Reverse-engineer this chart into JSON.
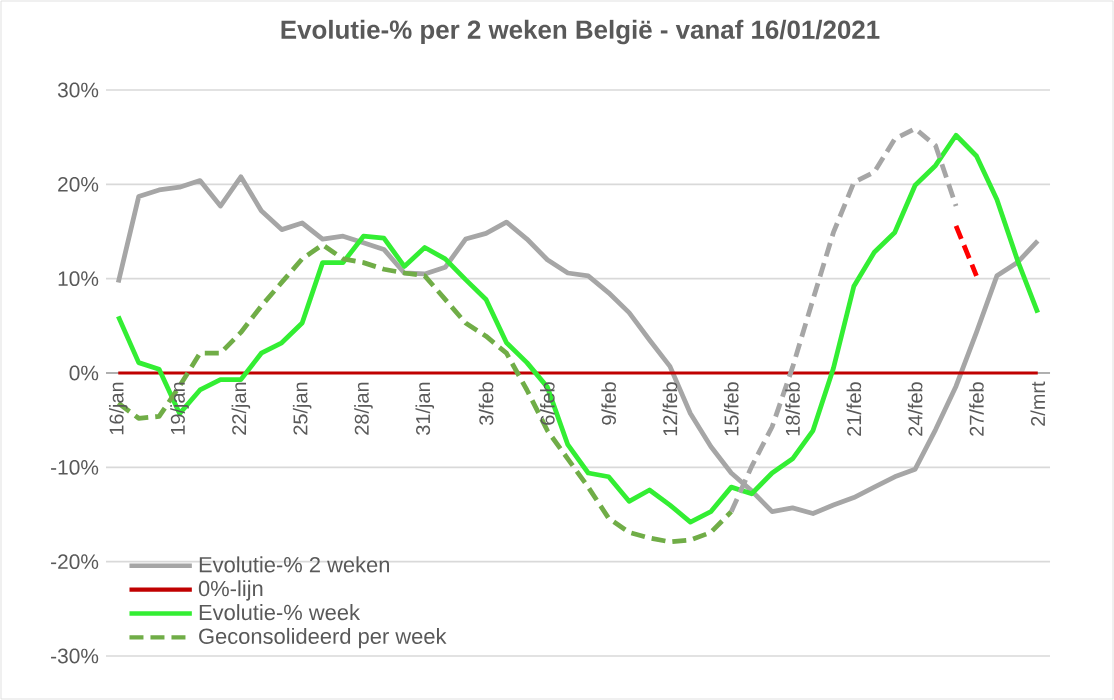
{
  "chart_data": {
    "type": "line",
    "title": "Evolutie-% per 2 weken België - vanaf 16/01/2021",
    "categories": [
      "16/jan",
      null,
      null,
      "19/jan",
      null,
      null,
      "22/jan",
      null,
      null,
      "25/jan",
      null,
      null,
      "28/jan",
      null,
      null,
      "31/jan",
      null,
      null,
      "3/feb",
      null,
      null,
      "6/feb",
      null,
      null,
      "9/feb",
      null,
      null,
      "12/feb",
      null,
      null,
      "15/feb",
      null,
      null,
      "18/feb",
      null,
      null,
      "21/feb",
      null,
      null,
      "24/feb",
      null,
      null,
      "27/feb",
      null,
      null,
      "2/mrt"
    ],
    "series": [
      {
        "name": "Evolutie-% 2 weken",
        "color": "#a6a6a6",
        "line_style": "solid",
        "values": [
          9.6,
          18.7,
          19.4,
          19.7,
          20.4,
          17.7,
          20.8,
          17.2,
          15.2,
          15.9,
          14.2,
          14.5,
          13.8,
          13.1,
          10.6,
          10.5,
          11.2,
          14.2,
          14.8,
          16,
          14.2,
          12,
          10.6,
          10.3,
          8.5,
          6.4,
          3.5,
          0.7,
          -4.3,
          -7.8,
          -10.6,
          -12.5,
          -14.7,
          -14.3,
          -14.9,
          -14,
          -13.2,
          -12.1,
          -11,
          -10.2,
          -6,
          -1.4,
          4.3,
          10.3,
          11.7,
          14
        ]
      },
      {
        "name": "0%-lijn",
        "color": "#c00000",
        "line_style": "solid",
        "values": [
          0,
          0,
          0,
          0,
          0,
          0,
          0,
          0,
          0,
          0,
          0,
          0,
          0,
          0,
          0,
          0,
          0,
          0,
          0,
          0,
          0,
          0,
          0,
          0,
          0,
          0,
          0,
          0,
          0,
          0,
          0,
          0,
          0,
          0,
          0,
          0,
          0,
          0,
          0,
          0,
          0,
          0,
          0,
          0,
          0,
          0
        ]
      },
      {
        "name": "Evolutie-% week",
        "color": "#33ee33",
        "line_style": "solid",
        "values": [
          6,
          1.1,
          0.4,
          -4.3,
          -1.8,
          -0.7,
          -0.7,
          2.1,
          3.2,
          5.3,
          11.7,
          11.7,
          14.5,
          14.3,
          11.3,
          13.3,
          12.1,
          9.9,
          7.8,
          3.2,
          1.1,
          -1.5,
          -7.6,
          -10.6,
          -11,
          -13.6,
          -12.4,
          -14,
          -15.8,
          -14.7,
          -12.1,
          -12.8,
          -10.6,
          -9.1,
          -6.1,
          0.5,
          9.2,
          12.8,
          14.9,
          19.9,
          22,
          25.2,
          23,
          18.4,
          12,
          6.4
        ]
      },
      {
        "name": "Geconsolideerd per week",
        "color": "#70ad47",
        "line_style": "dashed",
        "values": [
          -3.2,
          -4.8,
          -4.6,
          -1.4,
          2.1,
          2.1,
          4.3,
          7.1,
          9.6,
          12.1,
          13.6,
          12.1,
          11.7,
          11,
          10.6,
          10.3,
          7.8,
          5.3,
          3.9,
          2.1,
          -1.8,
          -6.1,
          -9.1,
          -12.1,
          -15.4,
          -16.9,
          -17.5,
          -17.9,
          -17.7,
          -16.9,
          -14.7,
          null,
          null,
          null,
          null,
          null,
          null,
          null,
          null,
          null,
          null,
          null,
          null,
          null,
          null,
          null
        ]
      },
      {
        "color": "#a6a6a6",
        "line_style": "dashed",
        "values": [
          null,
          null,
          null,
          null,
          null,
          null,
          null,
          null,
          null,
          null,
          null,
          null,
          null,
          null,
          null,
          null,
          null,
          null,
          null,
          null,
          null,
          null,
          null,
          null,
          null,
          null,
          null,
          null,
          null,
          null,
          -14.7,
          -9.9,
          -5.7,
          0.6,
          7.8,
          14.9,
          20.2,
          21.3,
          24.8,
          25.9,
          24.1,
          17.7,
          null,
          null,
          null,
          null
        ]
      },
      {
        "color": "#ff0000",
        "line_style": "dashed",
        "values": [
          null,
          null,
          null,
          null,
          null,
          null,
          null,
          null,
          null,
          null,
          null,
          null,
          null,
          null,
          null,
          null,
          null,
          null,
          null,
          null,
          null,
          null,
          null,
          null,
          null,
          null,
          null,
          null,
          null,
          null,
          null,
          null,
          null,
          null,
          null,
          null,
          null,
          null,
          null,
          null,
          null,
          15.6,
          10.3,
          null,
          null,
          null
        ]
      }
    ],
    "ylim": [
      -30,
      30
    ],
    "yticks": [
      {
        "value": -30,
        "label": "-30%"
      },
      {
        "value": -20,
        "label": "-20%"
      },
      {
        "value": -10,
        "label": "-10%"
      },
      {
        "value": 0,
        "label": "0%"
      },
      {
        "value": 10,
        "label": "10%"
      },
      {
        "value": 20,
        "label": "20%"
      },
      {
        "value": 30,
        "label": "30%"
      }
    ],
    "grid": "y",
    "legend": "bottom left",
    "marker": "none"
  }
}
